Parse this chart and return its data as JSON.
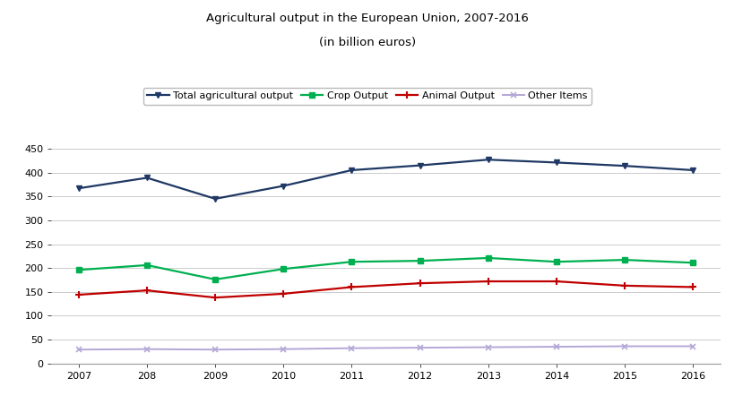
{
  "title_line1": "Agricultural output in the European Union, 2007-2016",
  "title_line2": "(in billion euros)",
  "x_labels": [
    "2007",
    "208",
    "2009",
    "2010",
    "2011",
    "2012",
    "2013",
    "2014",
    "2015",
    "2016"
  ],
  "x_values": [
    0,
    1,
    2,
    3,
    4,
    5,
    6,
    7,
    8,
    9
  ],
  "total_agri": [
    367,
    389,
    345,
    372,
    405,
    415,
    427,
    421,
    414,
    405
  ],
  "crop_output": [
    196,
    206,
    176,
    198,
    213,
    215,
    221,
    213,
    217,
    211
  ],
  "animal_output": [
    144,
    153,
    138,
    146,
    160,
    168,
    172,
    172,
    163,
    160
  ],
  "other_items": [
    29,
    30,
    29,
    30,
    32,
    33,
    34,
    35,
    36,
    36
  ],
  "color_total": "#1f3864",
  "color_crop": "#00b050",
  "color_animal": "#c00000",
  "color_other": "#b4a7d6",
  "ylim": [
    0,
    450
  ],
  "yticks": [
    0,
    50,
    100,
    150,
    200,
    250,
    300,
    350,
    400,
    450
  ],
  "bg_color": "#ffffff",
  "grid_color": "#cccccc",
  "title_fontsize": 9.5,
  "label_fontsize": 8,
  "legend_fontsize": 8
}
